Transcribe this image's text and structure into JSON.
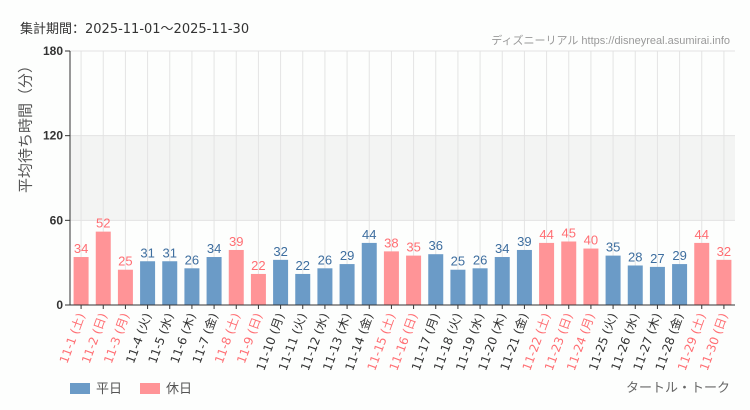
{
  "header": {
    "period": "集計期間：2025-11-01〜2025-11-30",
    "credit": "ディズニーリアル https://disneyreal.asumirai.info"
  },
  "attraction": "タートル・トーク",
  "legend": [
    {
      "label": "平日",
      "color": "#6b9bc7"
    },
    {
      "label": "休日",
      "color": "#ff9497"
    }
  ],
  "chart_data": {
    "type": "bar",
    "ylabel": "平均待ち時間（分）",
    "ylim": [
      0,
      180
    ],
    "yticks": [
      0,
      60,
      120,
      180
    ],
    "shaded_band": [
      60,
      120
    ],
    "grid": true,
    "legend_position": "bottom-left",
    "categories": [
      "11-1 (土)",
      "11-2 (日)",
      "11-3 (月)",
      "11-4 (火)",
      "11-5 (水)",
      "11-6 (木)",
      "11-7 (金)",
      "11-8 (土)",
      "11-9 (日)",
      "11-10 (月)",
      "11-11 (火)",
      "11-12 (水)",
      "11-13 (木)",
      "11-14 (金)",
      "11-15 (土)",
      "11-16 (日)",
      "11-17 (月)",
      "11-18 (火)",
      "11-19 (水)",
      "11-20 (木)",
      "11-21 (金)",
      "11-22 (土)",
      "11-23 (日)",
      "11-24 (月)",
      "11-25 (火)",
      "11-26 (水)",
      "11-27 (木)",
      "11-28 (金)",
      "11-29 (土)",
      "11-30 (日)"
    ],
    "values": [
      34,
      52,
      25,
      31,
      31,
      26,
      34,
      39,
      22,
      32,
      22,
      26,
      29,
      44,
      38,
      35,
      36,
      25,
      26,
      34,
      39,
      44,
      45,
      40,
      35,
      28,
      27,
      29,
      44,
      32
    ],
    "holiday": [
      true,
      true,
      true,
      false,
      false,
      false,
      false,
      true,
      true,
      false,
      false,
      false,
      false,
      false,
      true,
      true,
      false,
      false,
      false,
      false,
      false,
      true,
      true,
      true,
      false,
      false,
      false,
      false,
      true,
      true
    ],
    "colors": {
      "weekday": "#6b9bc7",
      "holiday": "#ff9497",
      "weekday_label": "#3e6e9f",
      "holiday_label": "#ff6e73"
    }
  }
}
